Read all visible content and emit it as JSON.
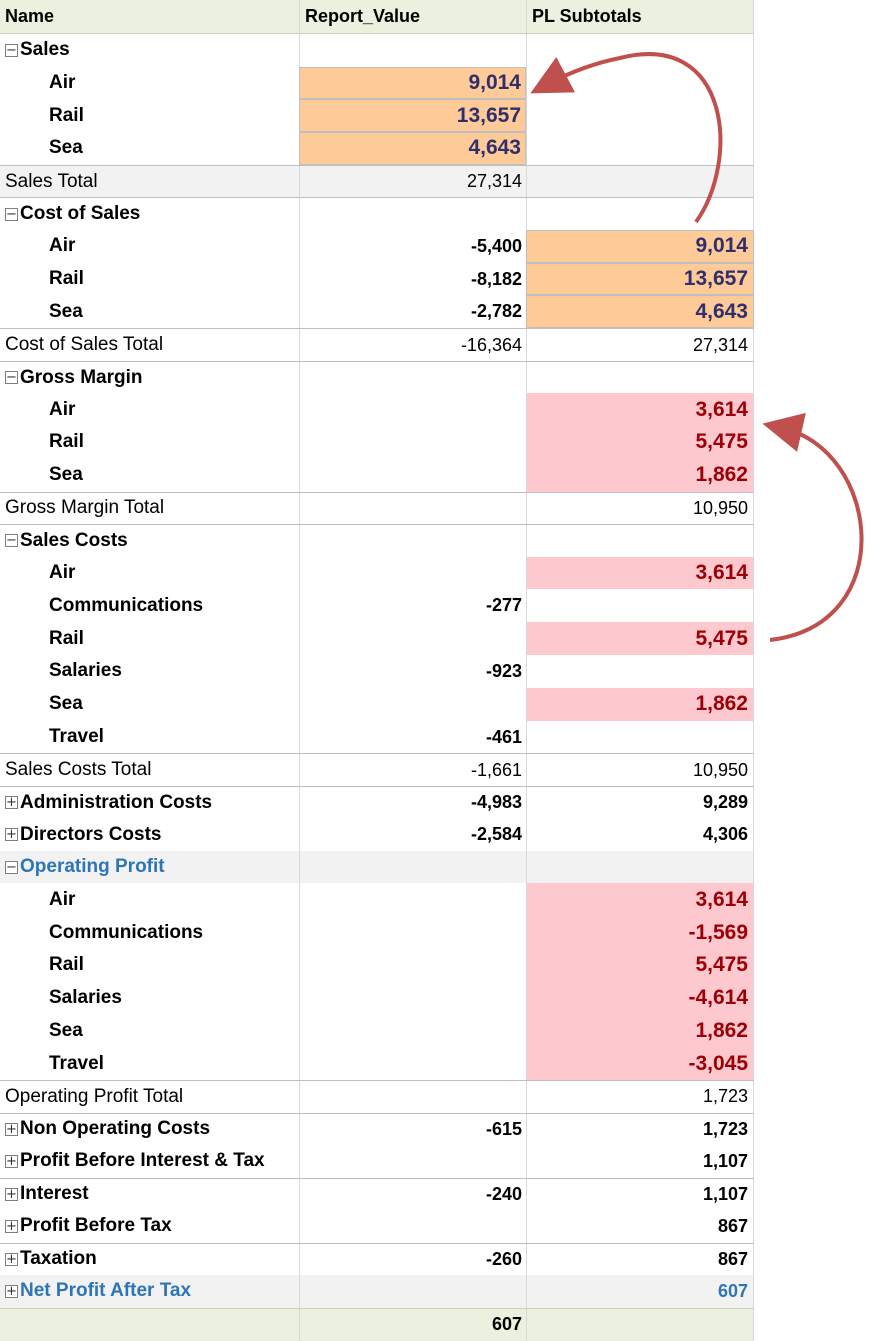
{
  "header": {
    "name": "Name",
    "report_value": "Report_Value",
    "pl_subtotals": "PL Subtotals"
  },
  "icons": {
    "collapse": "collapse-minus-icon",
    "expand": "expand-plus-icon"
  },
  "colors": {
    "header_bg": "#ebf1de",
    "orange_fill": "#fecb98",
    "pink_fill": "#fdc8ce",
    "pink_text": "#9c0006",
    "highlight_text": "#2e75b6",
    "arrow": "#c0504d"
  },
  "rows": [
    {
      "type": "group",
      "label": "Sales",
      "toggle": "−",
      "rv": "",
      "pl": ""
    },
    {
      "type": "item",
      "label": "Air",
      "rv": "9,014",
      "pl": "",
      "rv_style": "orange"
    },
    {
      "type": "item",
      "label": "Rail",
      "rv": "13,657",
      "pl": "",
      "rv_style": "orange"
    },
    {
      "type": "item",
      "label": "Sea",
      "rv": "4,643",
      "pl": "",
      "rv_style": "orange"
    },
    {
      "type": "total",
      "label": "Sales Total",
      "rv": "27,314",
      "pl": "",
      "hl": true
    },
    {
      "type": "group",
      "label": "Cost of Sales",
      "toggle": "−",
      "rv": "",
      "pl": ""
    },
    {
      "type": "item",
      "label": "Air",
      "rv": "-5,400",
      "pl": "9,014",
      "pl_style": "orange"
    },
    {
      "type": "item",
      "label": "Rail",
      "rv": "-8,182",
      "pl": "13,657",
      "pl_style": "orange"
    },
    {
      "type": "item",
      "label": "Sea",
      "rv": "-2,782",
      "pl": "4,643",
      "pl_style": "orange"
    },
    {
      "type": "total",
      "label": "Cost of Sales Total",
      "rv": "-16,364",
      "pl": "27,314"
    },
    {
      "type": "group",
      "label": "Gross Margin",
      "toggle": "−",
      "rv": "",
      "pl": ""
    },
    {
      "type": "item",
      "label": "Air",
      "rv": "",
      "pl": "3,614",
      "pl_style": "pink"
    },
    {
      "type": "item",
      "label": "Rail",
      "rv": "",
      "pl": "5,475",
      "pl_style": "pink"
    },
    {
      "type": "item",
      "label": "Sea",
      "rv": "",
      "pl": "1,862",
      "pl_style": "pink"
    },
    {
      "type": "total",
      "label": "Gross Margin Total",
      "rv": "",
      "pl": "10,950"
    },
    {
      "type": "group",
      "label": "Sales Costs",
      "toggle": "−",
      "rv": "",
      "pl": ""
    },
    {
      "type": "item",
      "label": "Air",
      "rv": "",
      "pl": "3,614",
      "pl_style": "pink"
    },
    {
      "type": "item",
      "label": "Communications",
      "rv": "-277",
      "pl": ""
    },
    {
      "type": "item",
      "label": "Rail",
      "rv": "",
      "pl": "5,475",
      "pl_style": "pink"
    },
    {
      "type": "item",
      "label": "Salaries",
      "rv": "-923",
      "pl": ""
    },
    {
      "type": "item",
      "label": "Sea",
      "rv": "",
      "pl": "1,862",
      "pl_style": "pink"
    },
    {
      "type": "item",
      "label": "Travel",
      "rv": "-461",
      "pl": ""
    },
    {
      "type": "total",
      "label": "Sales Costs Total",
      "rv": "-1,661",
      "pl": "10,950"
    },
    {
      "type": "group",
      "label": "Administration Costs",
      "toggle": "+",
      "rv": "-4,983",
      "pl": "9,289"
    },
    {
      "type": "group",
      "label": "Directors Costs",
      "toggle": "+",
      "rv": "-2,584",
      "pl": "4,306",
      "nosep": true
    },
    {
      "type": "group",
      "label": "Operating Profit",
      "toggle": "−",
      "rv": "",
      "pl": "",
      "blue": true,
      "hl": true,
      "nosep": true
    },
    {
      "type": "item",
      "label": "Air",
      "rv": "",
      "pl": "3,614",
      "pl_style": "pink"
    },
    {
      "type": "item",
      "label": "Communications",
      "rv": "",
      "pl": "-1,569",
      "pl_style": "pink"
    },
    {
      "type": "item",
      "label": "Rail",
      "rv": "",
      "pl": "5,475",
      "pl_style": "pink"
    },
    {
      "type": "item",
      "label": "Salaries",
      "rv": "",
      "pl": "-4,614",
      "pl_style": "pink"
    },
    {
      "type": "item",
      "label": "Sea",
      "rv": "",
      "pl": "1,862",
      "pl_style": "pink"
    },
    {
      "type": "item",
      "label": "Travel",
      "rv": "",
      "pl": "-3,045",
      "pl_style": "pink"
    },
    {
      "type": "total",
      "label": "Operating Profit Total",
      "rv": "",
      "pl": "1,723"
    },
    {
      "type": "group",
      "label": "Non Operating Costs",
      "toggle": "+",
      "rv": "-615",
      "pl": "1,723"
    },
    {
      "type": "group",
      "label": "Profit Before Interest & Tax",
      "toggle": "+",
      "rv": "",
      "pl": "1,107",
      "nosep": true
    },
    {
      "type": "group",
      "label": "Interest",
      "toggle": "+",
      "rv": "-240",
      "pl": "1,107"
    },
    {
      "type": "group",
      "label": "Profit Before Tax",
      "toggle": "+",
      "rv": "",
      "pl": "867",
      "nosep": true
    },
    {
      "type": "group",
      "label": "Taxation",
      "toggle": "+",
      "rv": "-260",
      "pl": "867"
    },
    {
      "type": "group",
      "label": "Net Profit After Tax",
      "toggle": "+",
      "rv": "",
      "pl": "607",
      "blue": true,
      "hl": true,
      "nosep": true
    }
  ],
  "footer": {
    "name": "",
    "report_value": "607",
    "pl_subtotals": ""
  }
}
